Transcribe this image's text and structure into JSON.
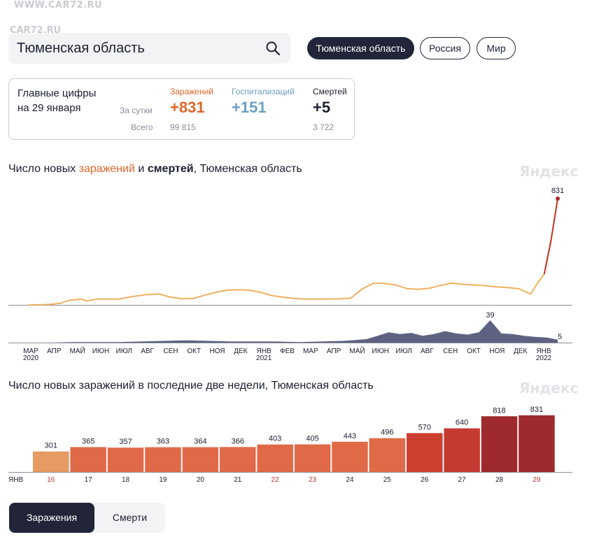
{
  "watermark": {
    "line1": "WWW.CAR72.RU",
    "line2": "CAR72.RU"
  },
  "search": {
    "value": "Тюменская область"
  },
  "region_tabs": [
    {
      "label": "Тюменская область",
      "active": true
    },
    {
      "label": "Россия",
      "active": false
    },
    {
      "label": "Мир",
      "active": false
    }
  ],
  "summary": {
    "heading_line1": "Главные цифры",
    "heading_line2": "на 29 января",
    "row_day": "За сутки",
    "row_total": "Всего",
    "columns": [
      {
        "label": "Заражений",
        "day": "+831",
        "total": "99 815",
        "color": "#e0662b"
      },
      {
        "label": "Госпитализаций",
        "day": "+151",
        "total": "",
        "color": "#6a9fc0"
      },
      {
        "label": "Смертей",
        "day": "+5",
        "total": "3 722",
        "color": "#1b1f2e"
      }
    ]
  },
  "brand": "Яндекс",
  "chart1": {
    "title_part1": "Число новых ",
    "title_part2": "заражений",
    "title_part3": " и ",
    "title_part4": "смертей",
    "title_part5": ", Тюменская область"
  },
  "chart2": {
    "title": "Число новых заражений в последние две недели, Тюменская область"
  },
  "bottom_tabs": [
    {
      "label": "Заражения",
      "active": true
    },
    {
      "label": "Смерти",
      "active": false
    }
  ],
  "chart_data": [
    {
      "type": "line",
      "series": [
        {
          "name": "заражений",
          "color": "#f0b060",
          "x": [
            0,
            0.7,
            1.0,
            1.4,
            1.8,
            2.3,
            2.6,
            3.0,
            3.5,
            4.0,
            4.6,
            5.2,
            5.8,
            6.3,
            6.8,
            7.3,
            7.8,
            8.3,
            8.8,
            9.3,
            9.8,
            10.3,
            10.8,
            11.3,
            11.8,
            12.3,
            12.8,
            13.3,
            13.8,
            14.3,
            14.8,
            15.3,
            15.8,
            16.3,
            16.8,
            17.3,
            17.8,
            18.3,
            18.8,
            19.3,
            19.8,
            20.3,
            20.8,
            21.3,
            21.8,
            22.3,
            22.6,
            22.9,
            23.2,
            23.5
          ],
          "values": [
            0,
            2,
            5,
            12,
            35,
            45,
            30,
            45,
            45,
            45,
            65,
            80,
            85,
            60,
            48,
            50,
            75,
            98,
            115,
            118,
            115,
            98,
            72,
            60,
            50,
            45,
            45,
            45,
            48,
            52,
            122,
            168,
            168,
            155,
            127,
            122,
            130,
            152,
            170,
            160,
            155,
            150,
            140,
            135,
            125,
            85,
            170,
            240,
            500,
            831
          ]
        },
        {
          "name": "смертей",
          "color": "#56587a",
          "x": [
            0,
            1,
            2,
            3,
            4,
            5,
            6,
            7,
            8,
            9,
            10,
            11,
            12,
            13,
            14,
            15,
            15.5,
            16,
            16.5,
            17,
            17.5,
            18,
            18.5,
            19,
            19.5,
            20,
            20.5,
            21,
            21.5,
            22,
            22.5,
            23,
            23.5
          ],
          "values": [
            0,
            0,
            1,
            1,
            1,
            2,
            3,
            4,
            3,
            2,
            2,
            2,
            1,
            2,
            3,
            6,
            12,
            18,
            15,
            17,
            12,
            15,
            20,
            16,
            14,
            18,
            39,
            16,
            15,
            12,
            10,
            9,
            5
          ]
        }
      ],
      "x_ticks": [
        "МАР",
        "АПР",
        "МАЙ",
        "ИЮН",
        "ИЮЛ",
        "АВГ",
        "СЕН",
        "ОКТ",
        "НОЯ",
        "ДЕК",
        "ЯНВ",
        "ФЕВ",
        "МАР",
        "АПР",
        "МАЙ",
        "ИЮН",
        "ИЮЛ",
        "АВГ",
        "СЕН",
        "ОКТ",
        "НОЯ",
        "ДЕК",
        "ЯНВ"
      ],
      "x_ticks_sub": [
        {
          "label": "2020",
          "index": 0
        },
        {
          "label": "2021",
          "index": 10
        },
        {
          "label": "2022",
          "index": 22
        }
      ],
      "annotations": [
        {
          "series": "заражений",
          "x": 23.5,
          "label": "831"
        },
        {
          "series": "смертей",
          "x": 20.5,
          "label": "39"
        },
        {
          "series": "смертей",
          "x": 23.5,
          "label": "5"
        }
      ]
    },
    {
      "type": "bar",
      "xlabel": "ЯНВ",
      "categories": [
        "16",
        "17",
        "18",
        "19",
        "20",
        "21",
        "22",
        "23",
        "24",
        "25",
        "26",
        "27",
        "28",
        "29"
      ],
      "values": [
        301,
        365,
        357,
        363,
        364,
        366,
        403,
        405,
        443,
        496,
        570,
        640,
        818,
        831
      ],
      "weekend": [
        true,
        false,
        false,
        false,
        false,
        false,
        true,
        true,
        false,
        false,
        false,
        false,
        false,
        true
      ],
      "colors": [
        "#e79a62",
        "#e06a48",
        "#e06a48",
        "#e06a48",
        "#e06a48",
        "#e06a48",
        "#e06a48",
        "#e06a48",
        "#e06a48",
        "#e06a48",
        "#cd3f30",
        "#c53a30",
        "#9e2a2e",
        "#9e2a2e"
      ],
      "ylim": [
        0,
        900
      ]
    }
  ]
}
